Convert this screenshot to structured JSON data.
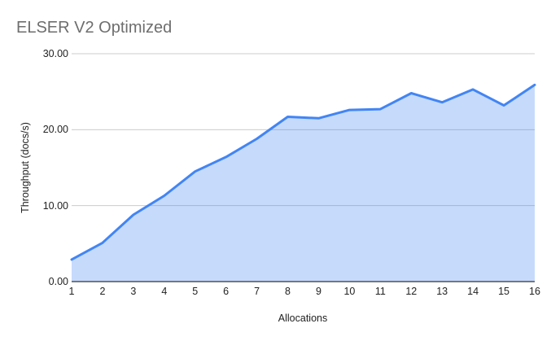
{
  "chart_data": {
    "type": "area",
    "title": "ELSER V2 Optimized",
    "xlabel": "Allocations",
    "ylabel": "Throughput (docs/s)",
    "categories": [
      "1",
      "2",
      "3",
      "4",
      "5",
      "6",
      "7",
      "8",
      "9",
      "10",
      "11",
      "12",
      "13",
      "14",
      "15",
      "16"
    ],
    "values": [
      2.9,
      5.1,
      8.8,
      11.3,
      14.5,
      16.4,
      18.8,
      21.7,
      21.5,
      22.6,
      22.7,
      24.8,
      23.6,
      25.3,
      23.2,
      25.9
    ],
    "ylim": [
      0,
      30
    ],
    "yticks": [
      {
        "label": "0.00",
        "value": 0
      },
      {
        "label": "10.00",
        "value": 10
      },
      {
        "label": "20.00",
        "value": 20
      },
      {
        "label": "30.00",
        "value": 30
      }
    ],
    "grid": true,
    "legend": "none",
    "colors": {
      "line": "#4285f4",
      "fill_rgba": "rgba(66,133,244,0.30)",
      "grid": "#cccccc",
      "axis": "#333333",
      "title_text": "#6e6e6e",
      "tick_text": "#222222"
    }
  }
}
